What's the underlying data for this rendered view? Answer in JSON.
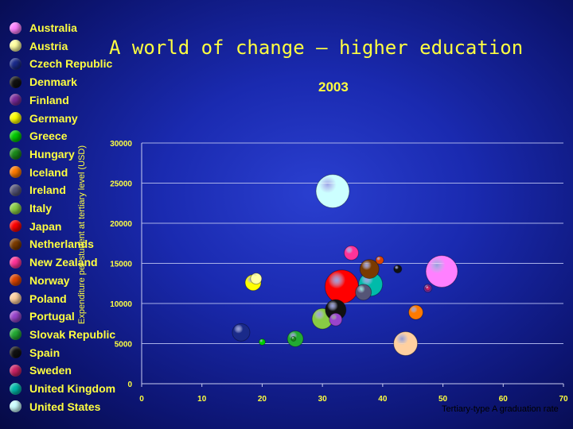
{
  "chart_data": {
    "type": "scatter",
    "title": "A world of change – higher education",
    "subtitle": "2003",
    "xlabel": "Tertiary-type A graduation rate",
    "ylabel": "Expenditure per student at tertiary level (USD)",
    "xlim": [
      0,
      70
    ],
    "ylim": [
      0,
      30000
    ],
    "xticks": [
      0,
      10,
      20,
      30,
      40,
      50,
      60,
      70
    ],
    "yticks": [
      0,
      5000,
      10000,
      15000,
      20000,
      25000,
      30000
    ],
    "grid": true,
    "legend_position": "left",
    "series": [
      {
        "name": "Australia",
        "x": 49.8,
        "y": 14000,
        "color": "#ff80ff",
        "size": 20
      },
      {
        "name": "Austria",
        "x": 19.0,
        "y": 13100,
        "color": "#ffffa0",
        "size": 7
      },
      {
        "name": "Czech Republic",
        "x": 16.5,
        "y": 6400,
        "color": "#1a2a8a",
        "size": 11
      },
      {
        "name": "Denmark",
        "x": 42.5,
        "y": 14300,
        "color": "#111111",
        "size": 5
      },
      {
        "name": "Finland",
        "x": 47.5,
        "y": 11900,
        "color": "#7a2a9a",
        "size": 5
      },
      {
        "name": "Germany",
        "x": 18.5,
        "y": 12600,
        "color": "#ffff00",
        "size": 10
      },
      {
        "name": "Greece",
        "x": 20.0,
        "y": 5200,
        "color": "#00cc00",
        "size": 4
      },
      {
        "name": "Hungary",
        "x": 25.2,
        "y": 5600,
        "color": "#1a8a1a",
        "size": 3
      },
      {
        "name": "Iceland",
        "x": 45.5,
        "y": 8900,
        "color": "#ff7a00",
        "size": 9
      },
      {
        "name": "Ireland",
        "x": 36.8,
        "y": 11400,
        "color": "#555577",
        "size": 10
      },
      {
        "name": "Italy",
        "x": 30.0,
        "y": 8100,
        "color": "#88cc44",
        "size": 13
      },
      {
        "name": "Japan",
        "x": 33.2,
        "y": 12100,
        "color": "#ff0000",
        "size": 21
      },
      {
        "name": "Netherlands",
        "x": 37.8,
        "y": 14300,
        "color": "#7a3a00",
        "size": 12
      },
      {
        "name": "New Zealand",
        "x": 34.8,
        "y": 16300,
        "color": "#ff3399",
        "size": 9
      },
      {
        "name": "Norway",
        "x": 39.5,
        "y": 15400,
        "color": "#dd4400",
        "size": 5
      },
      {
        "name": "Poland",
        "x": 43.8,
        "y": 5000,
        "color": "#ffd0a0",
        "size": 15
      },
      {
        "name": "Portugal",
        "x": 32.2,
        "y": 8000,
        "color": "#9944cc",
        "size": 8
      },
      {
        "name": "Slovak Republic",
        "x": 25.5,
        "y": 5600,
        "color": "#22aa33",
        "size": 10
      },
      {
        "name": "Spain",
        "x": 32.2,
        "y": 9200,
        "color": "#111111",
        "size": 13
      },
      {
        "name": "Sweden",
        "x": 47.5,
        "y": 11900,
        "color": "#cc2266",
        "size": 3
      },
      {
        "name": "United Kingdom",
        "x": 38.0,
        "y": 12400,
        "color": "#00bbaa",
        "size": 15
      },
      {
        "name": "United States",
        "x": 31.7,
        "y": 24000,
        "color": "#ccffff",
        "size": 21
      }
    ]
  }
}
